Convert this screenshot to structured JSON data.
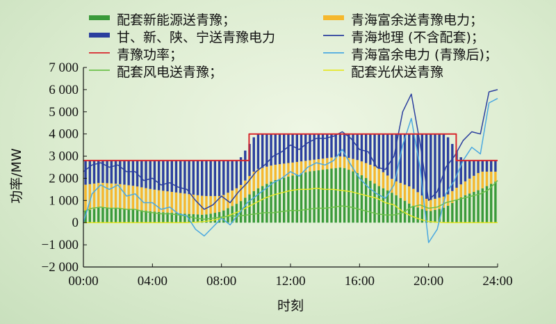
{
  "chart_data": {
    "type": "bar",
    "xlabel": "时刻",
    "ylabel": "功率/MW",
    "xlim": [
      0,
      24
    ],
    "ylim": [
      -2000,
      7000
    ],
    "x_ticks": [
      "00:00",
      "04:00",
      "08:00",
      "12:00",
      "16:00",
      "20:00",
      "24:00"
    ],
    "y_ticks": [
      "−2 000",
      "−1 000",
      "0",
      "1 000",
      "2 000",
      "3 000",
      "4 000",
      "5 000",
      "6 000",
      "7 000"
    ],
    "legend": [
      {
        "label": "配套新能源送青豫；",
        "kind": "bar",
        "color": "#3a9a3a"
      },
      {
        "label": "青海富余送青豫电力；",
        "kind": "bar",
        "color": "#f5b82e"
      },
      {
        "label": "甘、新、陕、宁送青豫电力",
        "kind": "bar",
        "color": "#2b3f9e"
      },
      {
        "label": "青海地理 (不含配套)；",
        "kind": "line",
        "color": "#2b3f9e"
      },
      {
        "label": "青豫功率；",
        "kind": "line",
        "color": "#d8262b"
      },
      {
        "label": "青海富余电力 (青豫后)；",
        "kind": "line",
        "color": "#4aa8e0"
      },
      {
        "label": "配套风电送青豫；",
        "kind": "line",
        "color": "#6cc04a"
      },
      {
        "label": "配套光伏送青豫",
        "kind": "line",
        "color": "#e6e628"
      }
    ],
    "series": [
      {
        "name": "配套新能源送青豫",
        "kind": "bar",
        "color": "#3a9a3a",
        "x": [
          0,
          1,
          2,
          3,
          4,
          5,
          6,
          7,
          8,
          9,
          10,
          11,
          12,
          13,
          14,
          15,
          16,
          17,
          18,
          19,
          20,
          21,
          22,
          23,
          24
        ],
        "values": [
          500,
          700,
          650,
          600,
          500,
          450,
          400,
          350,
          500,
          900,
          1500,
          1900,
          2100,
          2300,
          2400,
          2500,
          2200,
          1700,
          1300,
          800,
          500,
          700,
          1200,
          1500,
          1900
        ]
      },
      {
        "name": "青海富余送青豫电力",
        "kind": "bar",
        "color": "#f5b82e",
        "x": [
          0,
          1,
          2,
          3,
          4,
          5,
          6,
          7,
          8,
          9,
          10,
          11,
          12,
          13,
          14,
          15,
          16,
          17,
          18,
          19,
          20,
          21,
          22,
          23,
          24
        ],
        "values": [
          1200,
          1100,
          1100,
          1050,
          1000,
          950,
          900,
          850,
          700,
          700,
          900,
          700,
          600,
          500,
          500,
          500,
          600,
          800,
          600,
          800,
          500,
          500,
          600,
          800,
          400
        ]
      },
      {
        "name": "甘、新、陕、宁送青豫电力",
        "kind": "bar",
        "color": "#2b3f9e",
        "x": [
          0,
          1,
          2,
          3,
          4,
          5,
          6,
          7,
          8,
          9,
          10,
          11,
          12,
          13,
          14,
          15,
          16,
          17,
          18,
          19,
          20,
          21,
          22,
          23,
          24
        ],
        "values": [
          1100,
          1000,
          1050,
          1150,
          1300,
          1400,
          1500,
          1600,
          1600,
          1200,
          1600,
          1400,
          1300,
          1200,
          1100,
          1000,
          1200,
          1500,
          2100,
          2400,
          3000,
          2800,
          1000,
          500,
          500
        ]
      },
      {
        "name": "青海地理 (不含配套)",
        "kind": "line",
        "color": "#2b3f9e",
        "x": [
          0,
          0.5,
          1,
          1.5,
          2,
          2.5,
          3,
          3.5,
          4,
          4.5,
          5,
          5.5,
          6,
          6.5,
          7,
          7.5,
          8,
          8.5,
          9,
          9.5,
          10,
          10.5,
          11,
          11.5,
          12,
          12.5,
          13,
          13.5,
          14,
          14.5,
          15,
          15.5,
          16,
          16.5,
          17,
          17.5,
          18,
          18.5,
          19,
          19.5,
          20,
          20.5,
          21,
          21.5,
          22,
          22.5,
          23,
          23.5,
          24
        ],
        "values": [
          2300,
          2600,
          2700,
          2500,
          2600,
          2300,
          2300,
          1900,
          2000,
          1700,
          1800,
          1600,
          1500,
          1000,
          600,
          800,
          1200,
          900,
          1400,
          1800,
          2300,
          2600,
          3000,
          3200,
          3500,
          3300,
          3600,
          3800,
          3800,
          3900,
          4100,
          3800,
          3300,
          3200,
          2500,
          2400,
          3000,
          5000,
          5800,
          3600,
          1000,
          1400,
          2500,
          3000,
          3700,
          4100,
          4000,
          5900,
          6000
        ]
      },
      {
        "name": "青豫功率",
        "kind": "line",
        "color": "#d8262b",
        "x": [
          0,
          9.6,
          9.6,
          21.6,
          21.6,
          24
        ],
        "values": [
          2800,
          2800,
          4000,
          4000,
          2800,
          2800
        ]
      },
      {
        "name": "青海富余电力 (青豫后)",
        "kind": "line",
        "color": "#4aa8e0",
        "x": [
          0,
          0.5,
          1,
          1.5,
          2,
          2.5,
          3,
          3.5,
          4,
          4.5,
          5,
          5.5,
          6,
          6.5,
          7,
          7.5,
          8,
          8.5,
          9,
          9.5,
          10,
          10.5,
          11,
          11.5,
          12,
          12.5,
          13,
          13.5,
          14,
          14.5,
          15,
          15.5,
          16,
          16.5,
          17,
          17.5,
          18,
          18.5,
          19,
          19.5,
          20,
          20.5,
          21,
          21.5,
          22,
          22.5,
          23,
          23.5,
          24
        ],
        "values": [
          0,
          1300,
          1700,
          1500,
          1700,
          1200,
          1300,
          900,
          900,
          600,
          700,
          400,
          300,
          -300,
          -600,
          -200,
          200,
          -100,
          400,
          900,
          1200,
          1500,
          1800,
          2000,
          2300,
          2100,
          2500,
          2700,
          2600,
          2800,
          3300,
          2600,
          2000,
          1600,
          1300,
          1100,
          1700,
          3500,
          4700,
          2500,
          -900,
          -300,
          1300,
          1900,
          2800,
          3400,
          3100,
          5400,
          5600
        ]
      },
      {
        "name": "配套风电送青豫",
        "kind": "line",
        "color": "#6cc04a",
        "x": [
          0,
          0.5,
          1,
          1.5,
          2,
          2.5,
          3,
          3.5,
          4,
          4.5,
          5,
          5.5,
          6,
          6.5,
          7,
          7.5,
          8,
          8.5,
          9,
          9.5,
          10,
          10.5,
          11,
          11.5,
          12,
          12.5,
          13,
          13.5,
          14,
          14.5,
          15,
          15.5,
          16,
          16.5,
          17,
          17.5,
          18,
          18.5,
          19,
          19.5,
          20,
          20.5,
          21,
          21.5,
          22,
          22.5,
          23,
          23.5,
          24
        ],
        "values": [
          500,
          650,
          700,
          650,
          650,
          600,
          600,
          500,
          450,
          400,
          400,
          350,
          300,
          200,
          150,
          200,
          250,
          300,
          300,
          350,
          400,
          450,
          450,
          500,
          550,
          550,
          600,
          650,
          650,
          700,
          750,
          700,
          600,
          500,
          400,
          350,
          350,
          450,
          700,
          800,
          650,
          700,
          900,
          1000,
          1100,
          1200,
          1300,
          1500,
          1900
        ]
      },
      {
        "name": "配套光伏送青豫",
        "kind": "line",
        "color": "#e6e628",
        "x": [
          0,
          6,
          6.5,
          7,
          7.5,
          8,
          8.5,
          9,
          9.5,
          10,
          10.5,
          11,
          11.5,
          12,
          12.5,
          13,
          13.5,
          14,
          14.5,
          15,
          15.5,
          16,
          16.5,
          17,
          17.5,
          18,
          18.5,
          19,
          19.5,
          20,
          20.5,
          21,
          24
        ],
        "values": [
          0,
          0,
          20,
          50,
          100,
          200,
          350,
          500,
          700,
          900,
          1100,
          1250,
          1350,
          1450,
          1500,
          1500,
          1550,
          1500,
          1500,
          1450,
          1400,
          1300,
          1200,
          1100,
          900,
          800,
          500,
          300,
          150,
          50,
          20,
          0,
          0
        ]
      }
    ]
  }
}
